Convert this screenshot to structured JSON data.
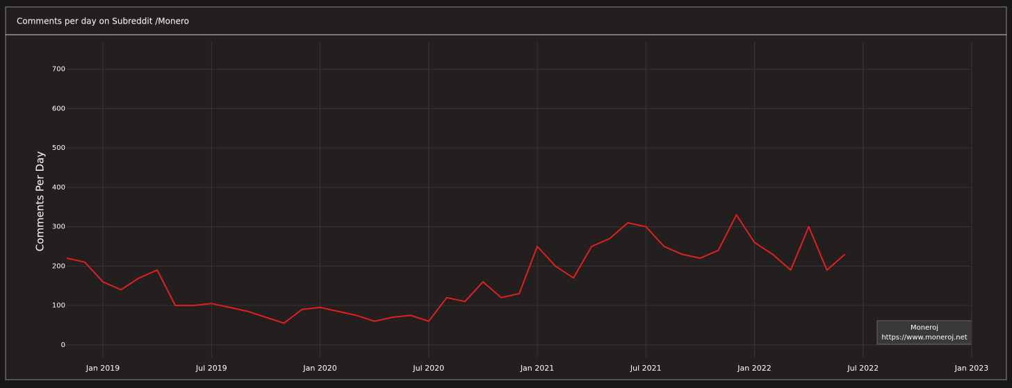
{
  "chart_data": {
    "type": "line",
    "title": "Comments per day on Subreddit /Monero",
    "y_label": "Comments Per Day",
    "watermark": [
      "Moneroj",
      "https://www.moneroj.net"
    ],
    "x": [
      "2018-11",
      "2018-12",
      "2019-01",
      "2019-02",
      "2019-03",
      "2019-04",
      "2019-05",
      "2019-06",
      "2019-07",
      "2019-08",
      "2019-09",
      "2019-10",
      "2019-11",
      "2019-12",
      "2020-01",
      "2020-02",
      "2020-03",
      "2020-04",
      "2020-05",
      "2020-06",
      "2020-07",
      "2020-08",
      "2020-09",
      "2020-10",
      "2020-11",
      "2020-12",
      "2021-01",
      "2021-02",
      "2021-03",
      "2021-04",
      "2021-05",
      "2021-06",
      "2021-07",
      "2021-08",
      "2021-09",
      "2021-10",
      "2021-11",
      "2021-12",
      "2022-01",
      "2022-02",
      "2022-03",
      "2022-04",
      "2022-05",
      "2022-06"
    ],
    "values": [
      220,
      210,
      160,
      140,
      170,
      190,
      100,
      100,
      105,
      95,
      85,
      70,
      55,
      90,
      95,
      85,
      75,
      60,
      70,
      75,
      60,
      120,
      110,
      160,
      120,
      130,
      250,
      200,
      170,
      250,
      270,
      310,
      300,
      250,
      230,
      220,
      240,
      330,
      260,
      230,
      190,
      300,
      190,
      230
    ],
    "color": "#e02020",
    "xlim": [
      "2018-11",
      "2023-01"
    ],
    "xticks": [
      {
        "value": "2019-01",
        "label": "Jan 2019"
      },
      {
        "value": "2019-07",
        "label": "Jul 2019"
      },
      {
        "value": "2020-01",
        "label": "Jan 2020"
      },
      {
        "value": "2020-07",
        "label": "Jul 2020"
      },
      {
        "value": "2021-01",
        "label": "Jan 2021"
      },
      {
        "value": "2021-07",
        "label": "Jul 2021"
      },
      {
        "value": "2022-01",
        "label": "Jan 2022"
      },
      {
        "value": "2022-07",
        "label": "Jul 2022"
      },
      {
        "value": "2023-01",
        "label": "Jan 2023"
      }
    ],
    "ylim": [
      -32,
      770
    ],
    "yticks": [
      0,
      100,
      200,
      300,
      400,
      500,
      600,
      700
    ],
    "grid": true
  }
}
